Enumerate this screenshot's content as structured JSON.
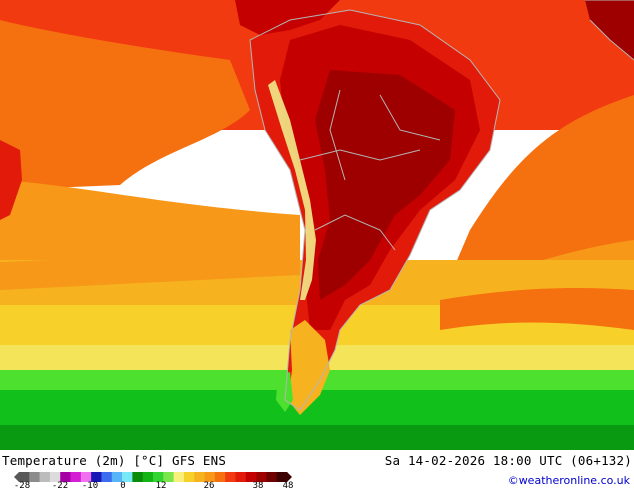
{
  "map": {
    "region": "South America",
    "field": "2m temperature",
    "zone_colors": {
      "hot_core": "#9e0000",
      "very_hot": "#c40000",
      "hot": "#e21a0a",
      "warm_red": "#f23a10",
      "orange": "#f5700f",
      "orange_light": "#f79818",
      "amber": "#f7b31f",
      "yellow": "#f7d02a",
      "yellow_light": "#f3e45a",
      "green_light": "#4ee02e",
      "green": "#12c01b",
      "green_dark": "#0a9a12",
      "andes_cool": "#f2ea8a",
      "land_outline": "#b5b5b5"
    }
  },
  "footer": {
    "title": "Temperature (2m) [°C] GFS ENS",
    "datetime": "Sa 14-02-2026 18:00 UTC (06+132)",
    "credit": "©weatheronline.co.uk"
  },
  "legend": {
    "ticks": [
      "-28",
      "-22",
      "-10",
      "0",
      "12",
      "26",
      "38",
      "48"
    ],
    "colors": [
      "#585858",
      "#8c8c8c",
      "#bcbcbc",
      "#dcdcdc",
      "#a400a4",
      "#d41ed4",
      "#f070f0",
      "#1818b4",
      "#3c6cf0",
      "#58b4f8",
      "#78e8f8",
      "#0a8c0a",
      "#14b414",
      "#32d432",
      "#7ae64a",
      "#f7f07a",
      "#f7d02a",
      "#f7b31f",
      "#f79818",
      "#f5700f",
      "#f23a10",
      "#e21a0a",
      "#c40000",
      "#9e0000",
      "#6e0000",
      "#3c0000"
    ]
  }
}
